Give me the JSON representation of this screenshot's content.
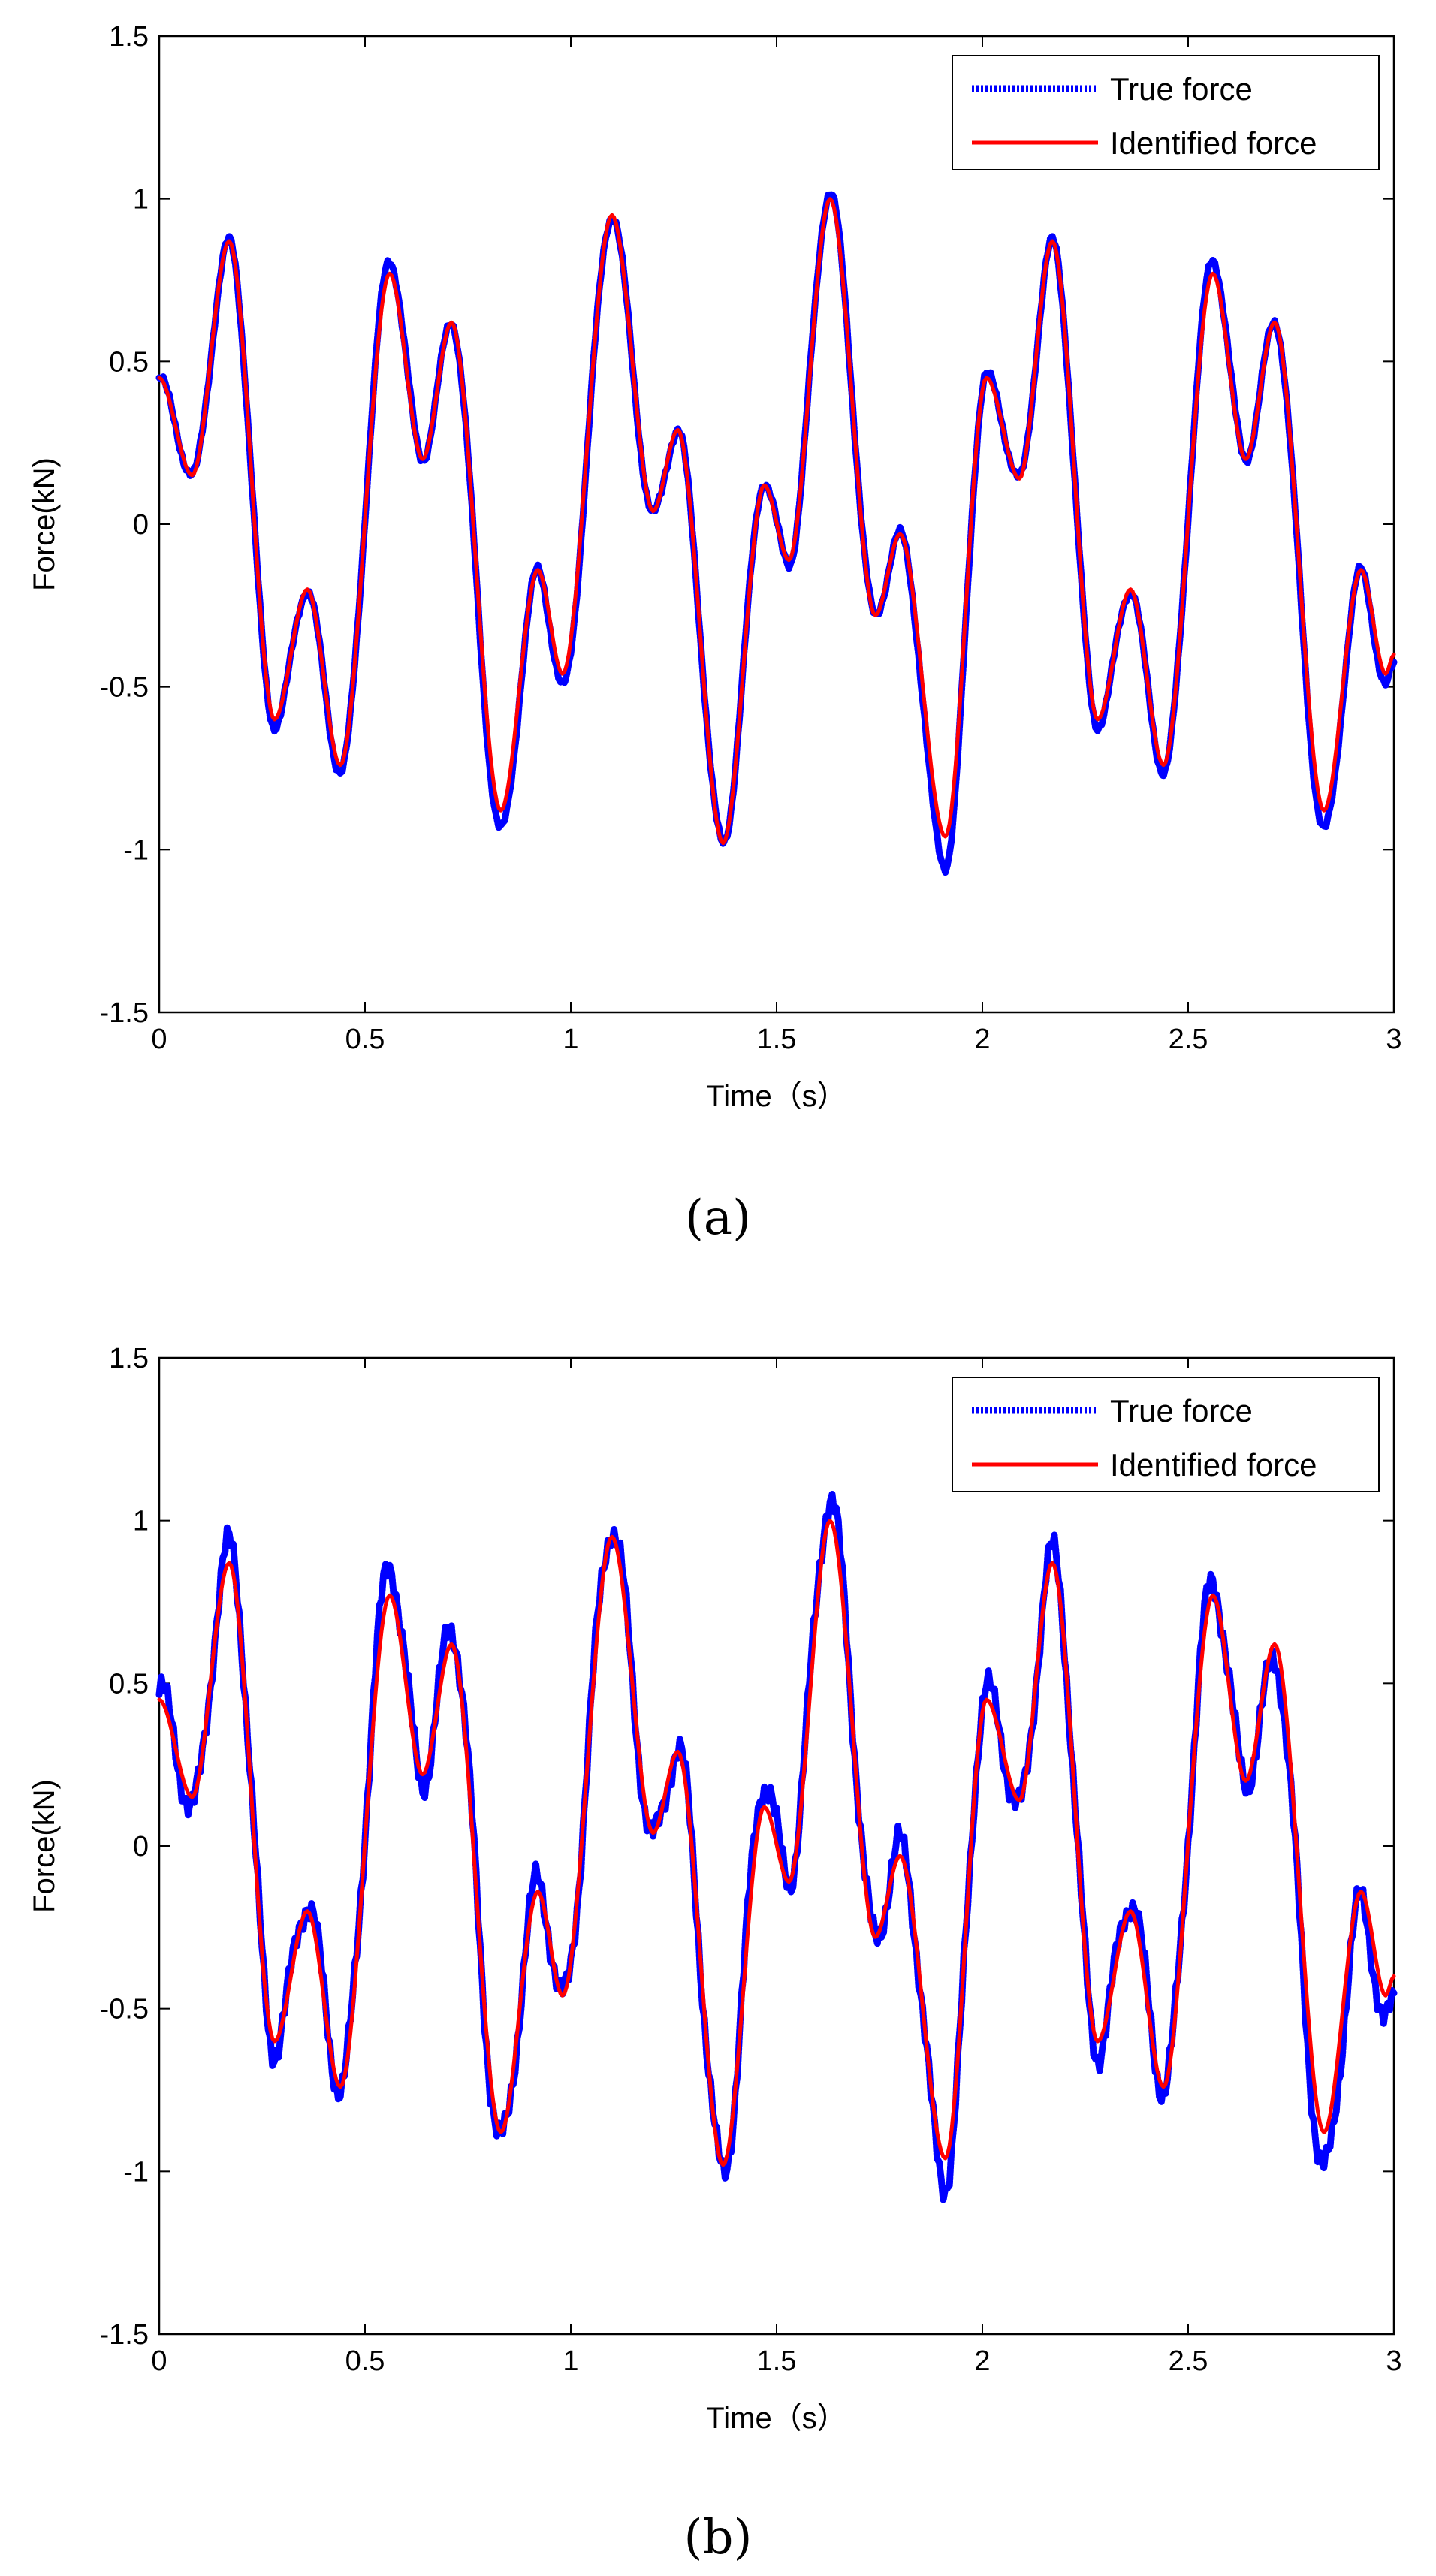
{
  "chart_data": [
    {
      "type": "line",
      "caption": "(a)",
      "xlabel": "Time（s）",
      "ylabel": "Force(kN)",
      "xlim": [
        0,
        3
      ],
      "ylim": [
        -1.5,
        1.5
      ],
      "xticks": [
        "0",
        "0.5",
        "1",
        "1.5",
        "2",
        "2.5",
        "3"
      ],
      "yticks": [
        "-1.5",
        "-1",
        "-0.5",
        "0",
        "0.5",
        "1",
        "1.5"
      ],
      "grid": false,
      "legend_position": "top-right",
      "series": [
        {
          "name": "True force",
          "color": "#0000ff",
          "style": "dotted-thick",
          "noise": 0.02,
          "x": [
            0,
            0.08,
            0.17,
            0.28,
            0.36,
            0.44,
            0.56,
            0.64,
            0.71,
            0.83,
            0.92,
            0.98,
            1.1,
            1.2,
            1.26,
            1.37,
            1.47,
            1.53,
            1.63,
            1.74,
            1.8,
            1.91,
            2.01,
            2.09,
            2.17,
            2.28,
            2.36,
            2.44,
            2.56,
            2.64,
            2.71,
            2.83,
            2.92,
            2.98,
            3
          ],
          "y": [
            0.45,
            0.15,
            0.87,
            -0.62,
            -0.2,
            -0.76,
            0.81,
            0.2,
            0.62,
            -0.94,
            -0.14,
            -0.5,
            0.95,
            0.03,
            0.29,
            -0.98,
            0.13,
            -0.12,
            1.02,
            -0.28,
            -0.03,
            -1.05,
            0.46,
            0.14,
            0.87,
            -0.62,
            -0.2,
            -0.76,
            0.81,
            0.2,
            0.62,
            -0.94,
            -0.14,
            -0.5,
            -0.43
          ]
        },
        {
          "name": "Identified force",
          "color": "#ff0000",
          "style": "solid",
          "noise": 0,
          "x": [
            0,
            0.08,
            0.17,
            0.28,
            0.36,
            0.44,
            0.56,
            0.64,
            0.71,
            0.83,
            0.92,
            0.98,
            1.1,
            1.2,
            1.26,
            1.37,
            1.47,
            1.53,
            1.63,
            1.74,
            1.8,
            1.91,
            2.01,
            2.09,
            2.17,
            2.28,
            2.36,
            2.44,
            2.56,
            2.64,
            2.71,
            2.83,
            2.92,
            2.98,
            3
          ],
          "y": [
            0.45,
            0.15,
            0.87,
            -0.6,
            -0.2,
            -0.74,
            0.77,
            0.2,
            0.62,
            -0.88,
            -0.14,
            -0.46,
            0.95,
            0.04,
            0.29,
            -0.98,
            0.12,
            -0.11,
            1.0,
            -0.28,
            -0.03,
            -0.96,
            0.45,
            0.14,
            0.87,
            -0.6,
            -0.2,
            -0.74,
            0.77,
            0.2,
            0.62,
            -0.88,
            -0.14,
            -0.46,
            -0.4
          ]
        }
      ]
    },
    {
      "type": "line",
      "caption": "(b)",
      "xlabel": "Time（s）",
      "ylabel": "Force(kN)",
      "xlim": [
        0,
        3
      ],
      "ylim": [
        -1.5,
        1.5
      ],
      "xticks": [
        "0",
        "0.5",
        "1",
        "1.5",
        "2",
        "2.5",
        "3"
      ],
      "yticks": [
        "-1.5",
        "-1",
        "-0.5",
        "0",
        "0.5",
        "1",
        "1.5"
      ],
      "grid": false,
      "legend_position": "top-right",
      "series": [
        {
          "name": "True force",
          "color": "#0000ff",
          "style": "dotted-thick",
          "noise": 0.07,
          "x": [
            0,
            0.08,
            0.17,
            0.28,
            0.36,
            0.44,
            0.56,
            0.64,
            0.71,
            0.83,
            0.92,
            0.98,
            1.1,
            1.2,
            1.26,
            1.37,
            1.47,
            1.53,
            1.63,
            1.74,
            1.8,
            1.91,
            2.01,
            2.09,
            2.17,
            2.28,
            2.36,
            2.44,
            2.56,
            2.64,
            2.71,
            2.83,
            2.92,
            2.98,
            3
          ],
          "y": [
            0.48,
            0.12,
            0.92,
            -0.62,
            -0.17,
            -0.74,
            0.86,
            0.2,
            0.67,
            -0.91,
            -0.11,
            -0.47,
            0.98,
            0.02,
            0.3,
            -1.0,
            0.2,
            -0.1,
            1.06,
            -0.28,
            0.0,
            -1.03,
            0.48,
            0.12,
            0.9,
            -0.63,
            -0.16,
            -0.74,
            0.81,
            0.2,
            0.57,
            -1.0,
            -0.17,
            -0.55,
            -0.48
          ]
        },
        {
          "name": "Identified force",
          "color": "#ff0000",
          "style": "solid",
          "noise": 0,
          "x": [
            0,
            0.08,
            0.17,
            0.28,
            0.36,
            0.44,
            0.56,
            0.64,
            0.71,
            0.83,
            0.92,
            0.98,
            1.1,
            1.2,
            1.26,
            1.37,
            1.47,
            1.53,
            1.63,
            1.74,
            1.8,
            1.91,
            2.01,
            2.09,
            2.17,
            2.28,
            2.36,
            2.44,
            2.56,
            2.64,
            2.71,
            2.83,
            2.92,
            2.98,
            3
          ],
          "y": [
            0.45,
            0.15,
            0.87,
            -0.6,
            -0.2,
            -0.74,
            0.77,
            0.22,
            0.62,
            -0.88,
            -0.14,
            -0.46,
            0.95,
            0.04,
            0.29,
            -0.98,
            0.12,
            -0.11,
            1.0,
            -0.28,
            -0.03,
            -0.96,
            0.45,
            0.14,
            0.87,
            -0.6,
            -0.2,
            -0.74,
            0.77,
            0.2,
            0.62,
            -0.88,
            -0.14,
            -0.46,
            -0.4
          ]
        }
      ]
    }
  ]
}
